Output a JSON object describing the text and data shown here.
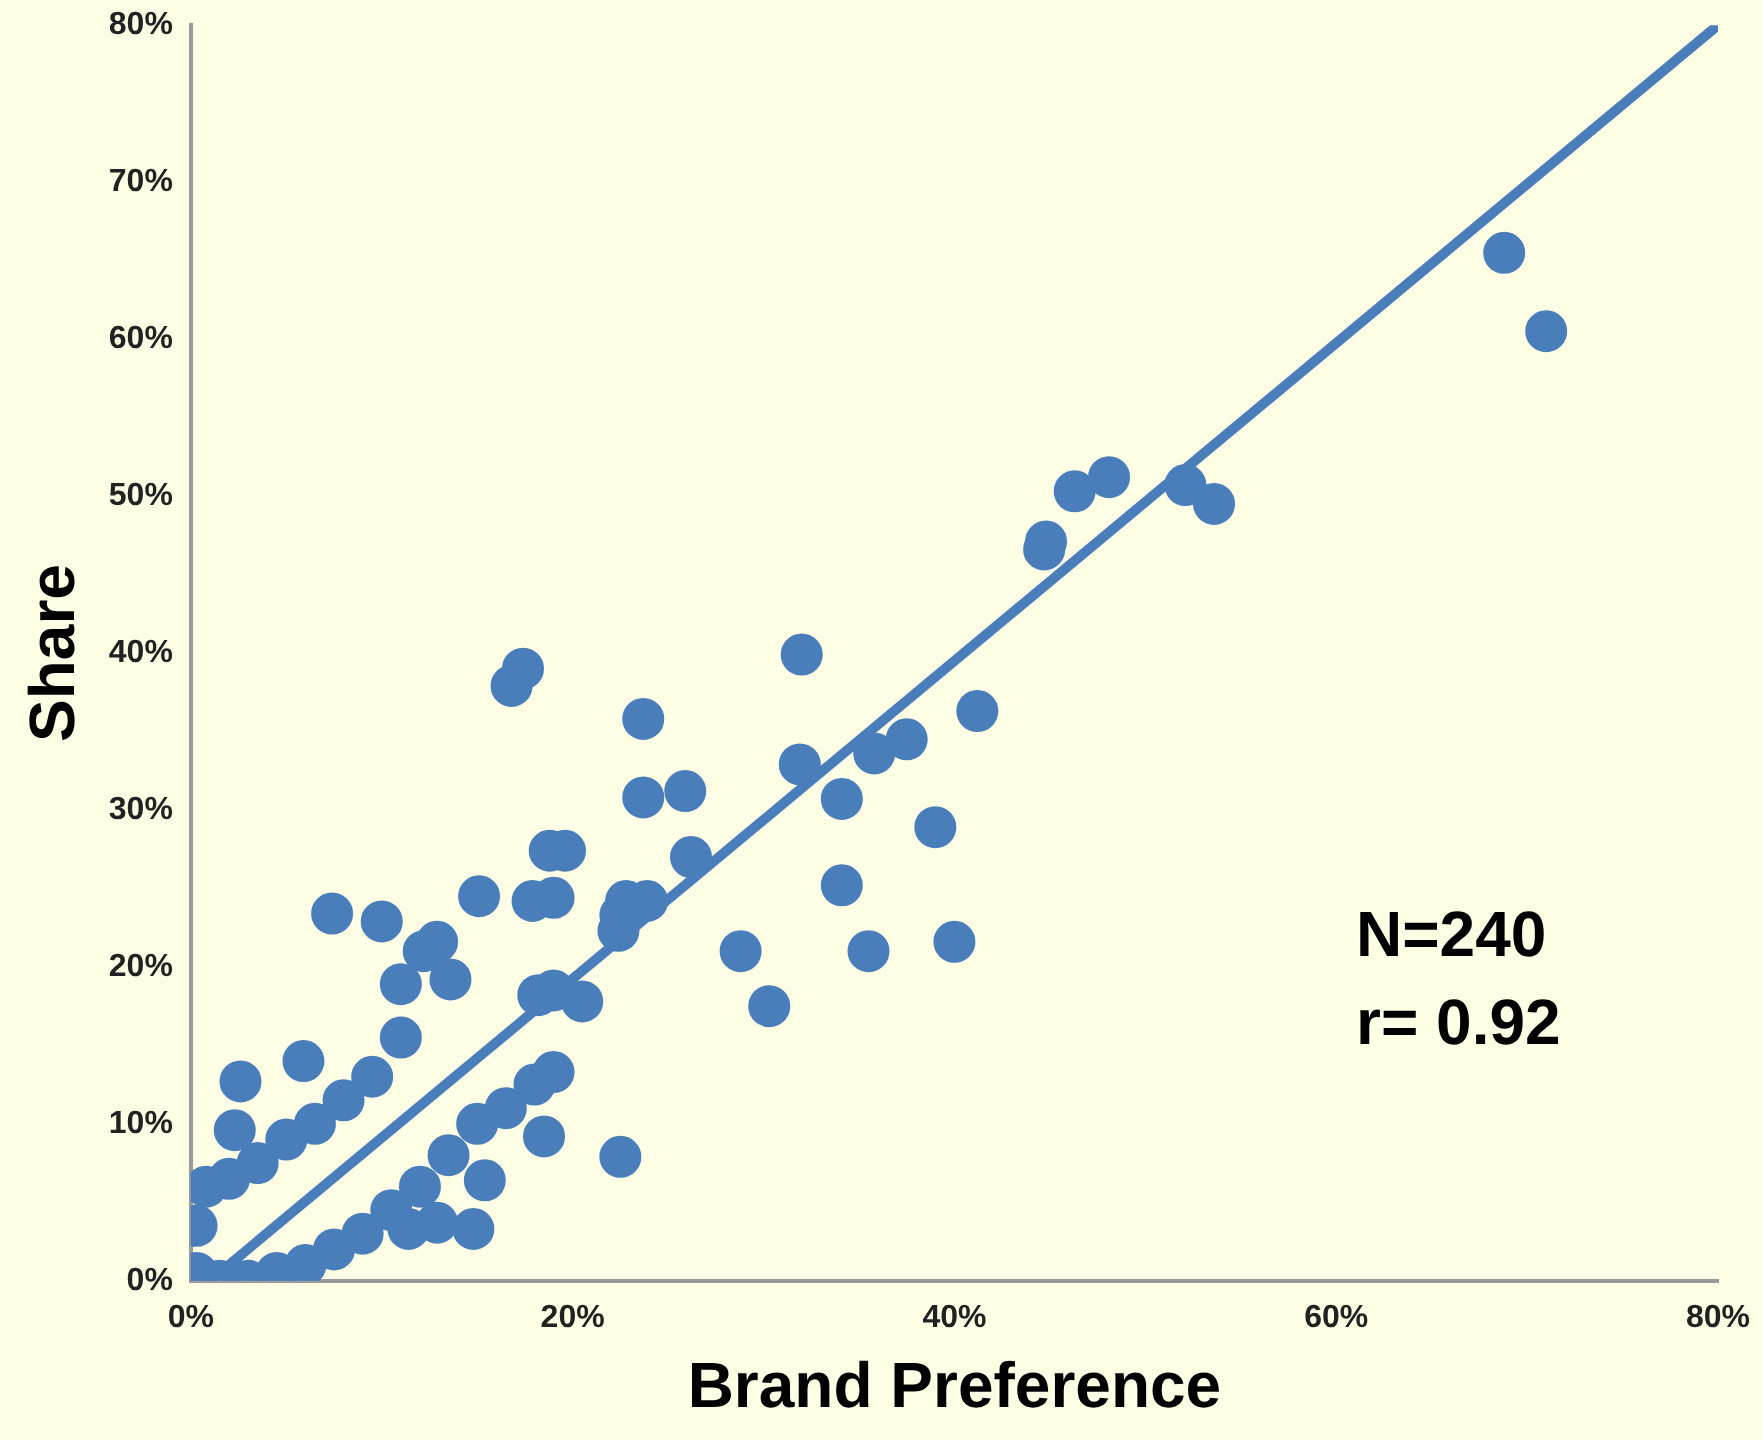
{
  "chart_data": {
    "type": "scatter",
    "xlabel": "Brand Preference",
    "ylabel": "Share",
    "legend": false,
    "grid": false,
    "xlim": [
      0,
      80
    ],
    "ylim": [
      0,
      80
    ],
    "xticks": [
      {
        "value": 0,
        "label": "0%"
      },
      {
        "value": 20,
        "label": "20%"
      },
      {
        "value": 40,
        "label": "40%"
      },
      {
        "value": 60,
        "label": "60%"
      },
      {
        "value": 80,
        "label": "80%"
      }
    ],
    "yticks": [
      {
        "value": 0,
        "label": "0%"
      },
      {
        "value": 10,
        "label": "10%"
      },
      {
        "value": 20,
        "label": "20%"
      },
      {
        "value": 30,
        "label": "30%"
      },
      {
        "value": 40,
        "label": "40%"
      },
      {
        "value": 50,
        "label": "50%"
      },
      {
        "value": 60,
        "label": "60%"
      },
      {
        "value": 70,
        "label": "70%"
      },
      {
        "value": 80,
        "label": "80%"
      }
    ],
    "annotations": [
      "N=240",
      "r= 0.92"
    ],
    "series": [
      {
        "color": "#4a7ebb",
        "marker": "circle",
        "x": [
          68.8,
          71,
          44.8,
          44.7,
          46.3,
          48.1,
          52.1,
          53.6,
          32,
          41.2,
          37.5,
          35.8,
          31.9,
          23.7,
          17.4,
          16.8,
          34.1,
          39,
          23.7,
          25.9,
          34.1,
          26.2,
          18.8,
          19.6,
          15.1,
          17.9,
          19,
          22.8,
          23.9,
          28.8,
          35.5,
          40,
          30.3,
          22.4,
          19,
          20.5,
          7.4,
          10,
          22.5,
          15.4,
          14.8,
          12.9,
          11.4,
          2.6,
          5.9,
          2.3,
          18.5,
          19,
          11,
          12.2,
          12.9,
          13.6,
          18.2,
          22.5,
          0.3,
          0.3,
          0.8,
          2,
          3.5,
          5,
          6.5,
          8,
          9.5,
          11,
          1.5,
          3,
          4.5,
          6,
          7.5,
          9,
          10.5,
          12,
          13.5,
          15,
          16.5,
          18
        ],
        "values": [
          65.5,
          60.5,
          47.1,
          46.6,
          50.3,
          51.2,
          50.7,
          49.5,
          39.9,
          36.3,
          34.5,
          33.6,
          32.9,
          35.8,
          39,
          37.9,
          30.7,
          28.9,
          30.8,
          31.2,
          25.2,
          27,
          27.4,
          27.4,
          24.5,
          24.2,
          24.4,
          24.2,
          24.2,
          21,
          21,
          21.6,
          17.5,
          22.3,
          18.5,
          17.8,
          23.4,
          22.9,
          7.9,
          6.4,
          3.3,
          3.7,
          3.3,
          12.7,
          14,
          9.6,
          9.2,
          13.3,
          18.9,
          21,
          21.6,
          19.2,
          18.2,
          23.3,
          0.5,
          3.5,
          6,
          6.5,
          7.5,
          9,
          10,
          11.5,
          13,
          15.5,
          0,
          0,
          0.5,
          1,
          2,
          3,
          4.5,
          6,
          8,
          10,
          11,
          12.5
        ]
      },
      {
        "type": "line",
        "color": "#4a7ebb",
        "x": [
          1,
          80
        ],
        "values": [
          0,
          80
        ]
      }
    ]
  }
}
